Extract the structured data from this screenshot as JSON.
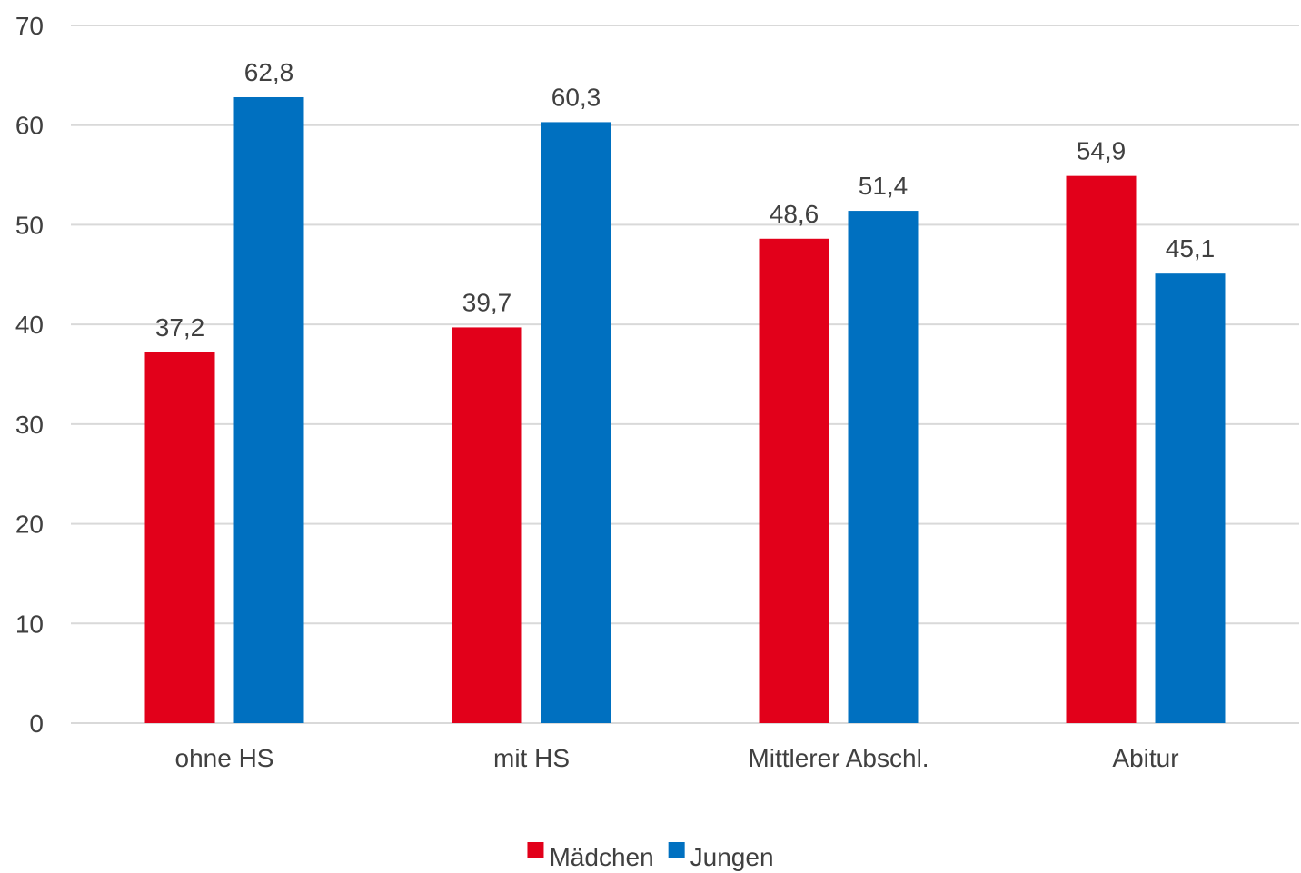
{
  "chart_data": {
    "type": "bar",
    "categories": [
      "ohne HS",
      "mit HS",
      "Mittlerer Abschl.",
      "Abitur"
    ],
    "series": [
      {
        "name": "Mädchen",
        "values": [
          37.2,
          39.7,
          48.6,
          54.9
        ],
        "labels": [
          "37,2",
          "39,7",
          "48,6",
          "54,9"
        ],
        "color": "#E2001A"
      },
      {
        "name": "Jungen",
        "values": [
          62.8,
          60.3,
          51.4,
          45.1
        ],
        "labels": [
          "62,8",
          "60,3",
          "51,4",
          "45,1"
        ],
        "color": "#0070C0"
      }
    ],
    "ylim": [
      0,
      70
    ],
    "yticks": [
      0,
      10,
      20,
      30,
      40,
      50,
      60,
      70
    ],
    "grid": true,
    "legend": "bottom",
    "title": "",
    "xlabel": "",
    "ylabel": ""
  },
  "colors": {
    "gridline": "#D9D9D9",
    "text": "#404040"
  }
}
